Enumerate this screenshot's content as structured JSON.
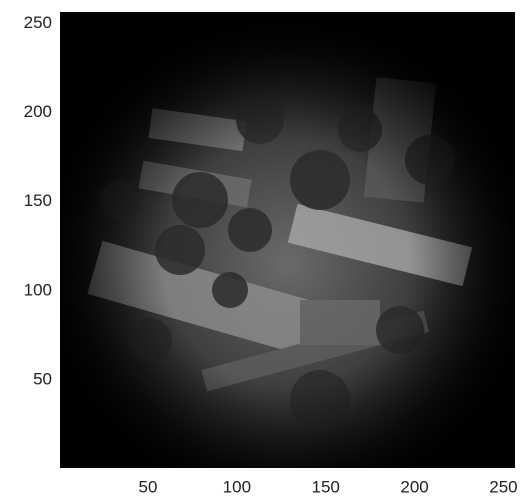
{
  "chart_data": {
    "type": "image",
    "xlim": [
      0.5,
      256.5
    ],
    "ylim": [
      0.5,
      256.5
    ],
    "xticks": [
      50,
      100,
      150,
      200,
      250
    ],
    "yticks": [
      50,
      100,
      150,
      200,
      250
    ]
  }
}
